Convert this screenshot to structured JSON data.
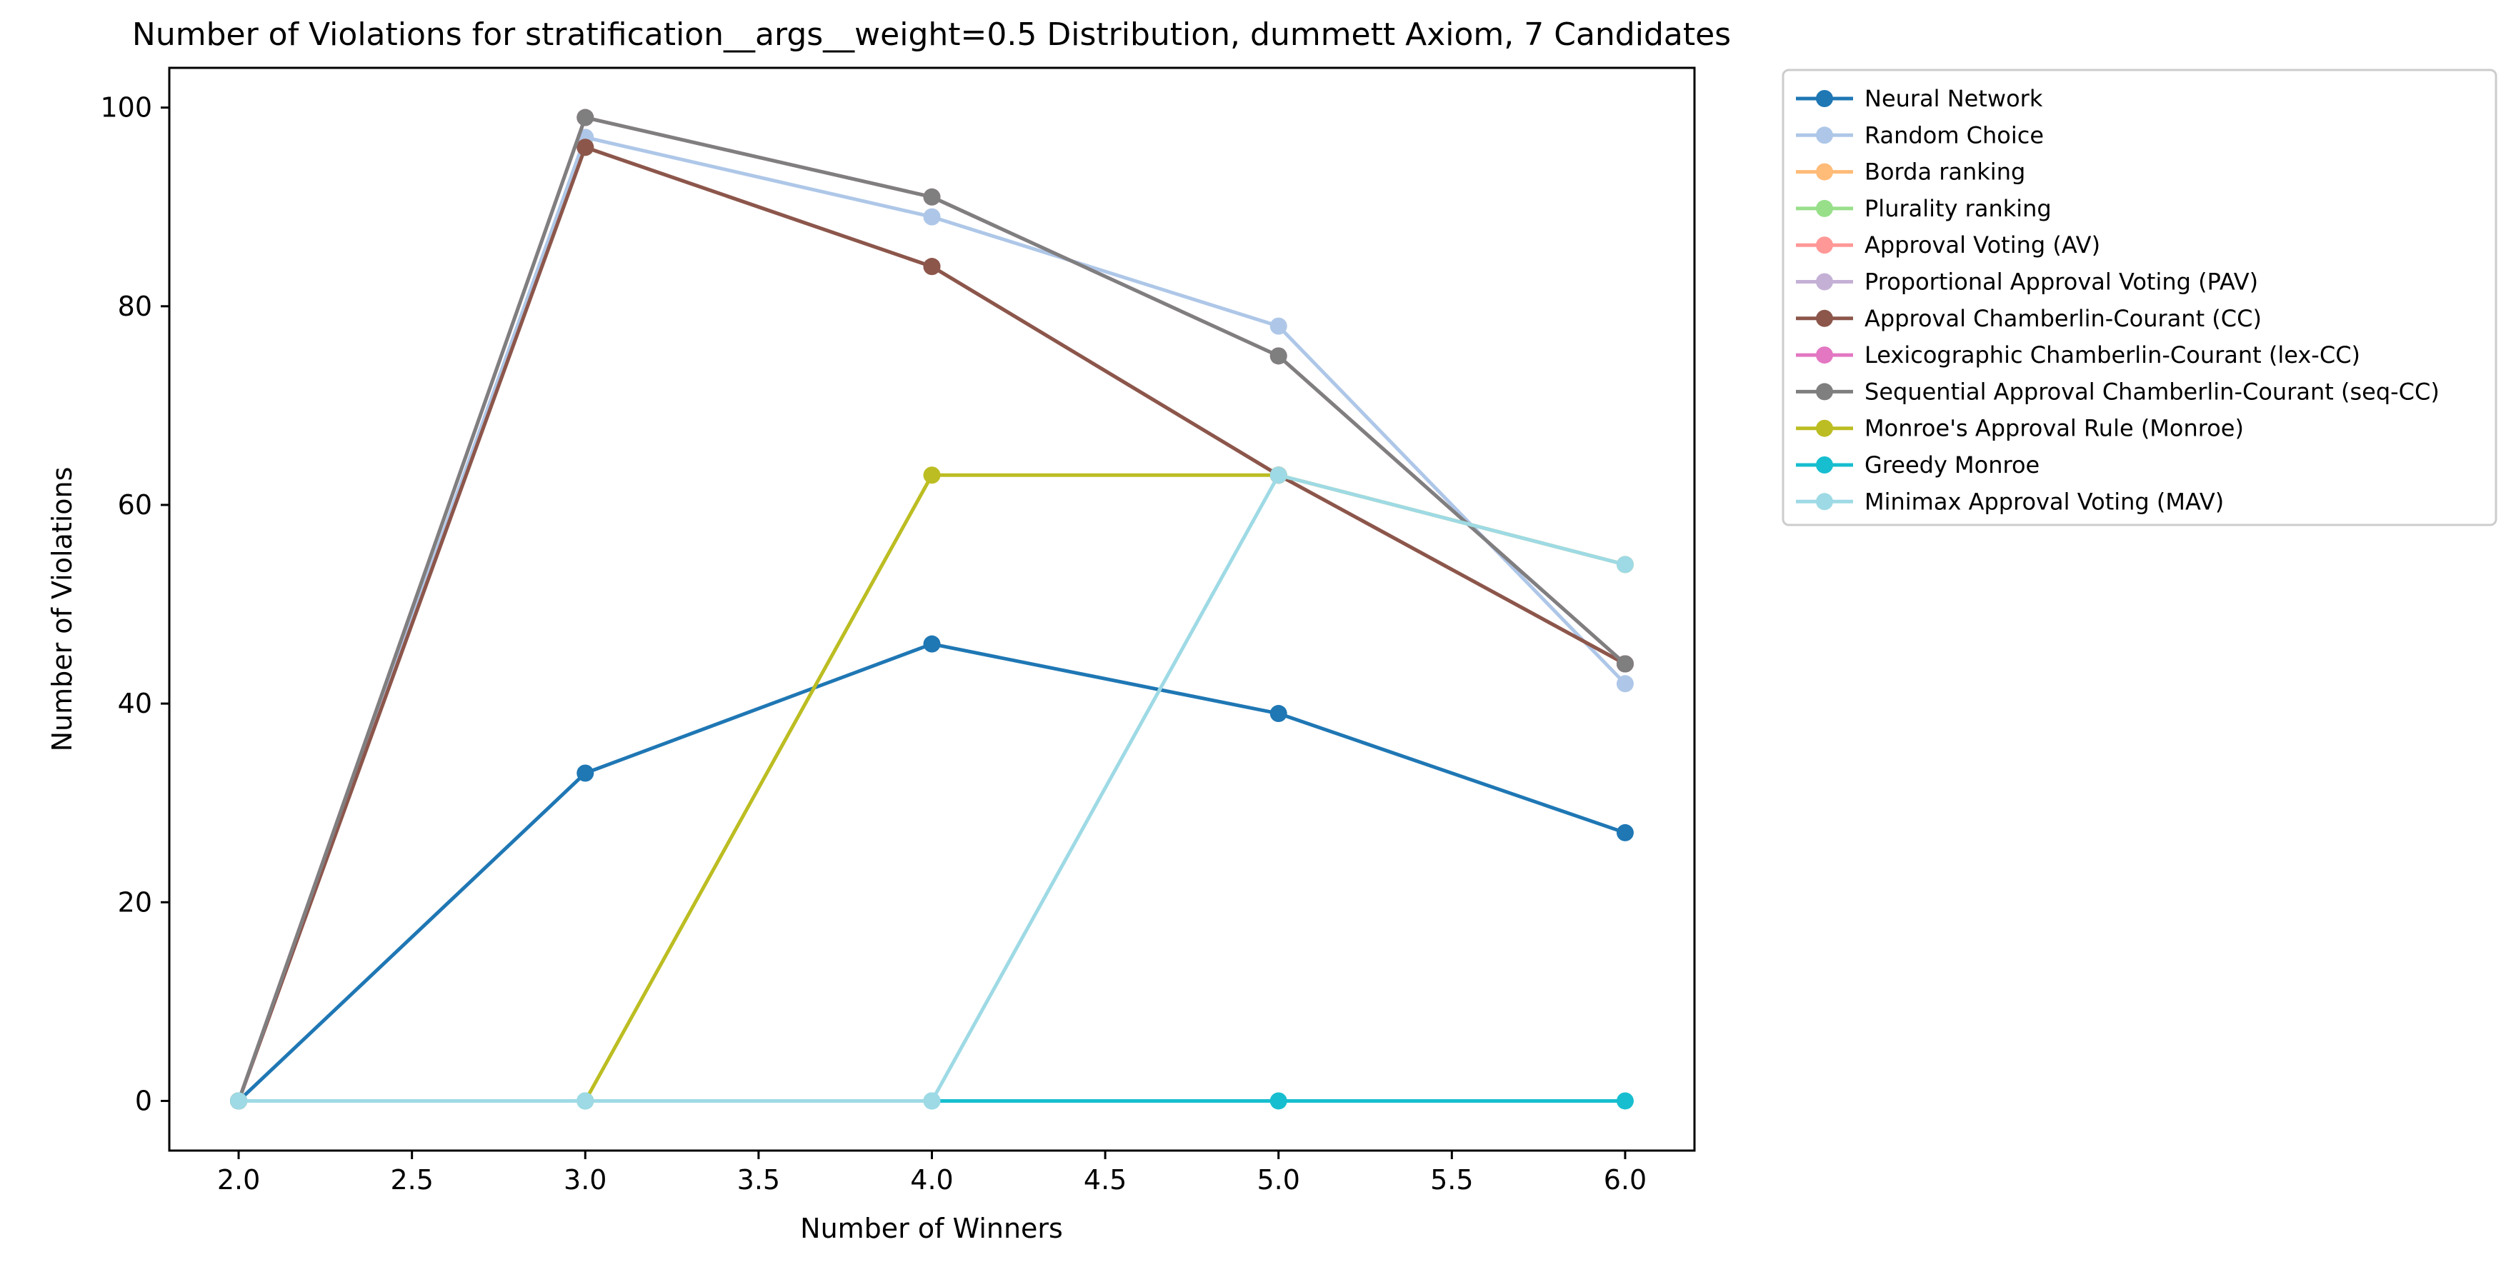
{
  "chart_data": {
    "type": "line",
    "title": "Number of Violations for stratification__args__weight=0.5 Distribution, dummett Axiom, 7 Candidates",
    "xlabel": "Number of Winners",
    "ylabel": "Number of Violations",
    "x": [
      2.0,
      3.0,
      4.0,
      5.0,
      6.0
    ],
    "xlim": [
      1.8,
      6.2
    ],
    "ylim": [
      -5,
      104
    ],
    "x_ticks": [
      2.0,
      2.5,
      3.0,
      3.5,
      4.0,
      4.5,
      5.0,
      5.5,
      6.0
    ],
    "x_tick_labels": [
      "2.0",
      "2.5",
      "3.0",
      "3.5",
      "4.0",
      "4.5",
      "5.0",
      "5.5",
      "6.0"
    ],
    "y_ticks": [
      0,
      20,
      40,
      60,
      80,
      100
    ],
    "y_tick_labels": [
      "0",
      "20",
      "40",
      "60",
      "80",
      "100"
    ],
    "grid": false,
    "legend_position": "outside-right-top",
    "series": [
      {
        "name": "Neural Network",
        "color": "#1f77b4",
        "values": [
          0,
          33,
          46,
          39,
          27
        ]
      },
      {
        "name": "Random Choice",
        "color": "#aec7e8",
        "values": [
          0,
          97,
          89,
          78,
          42
        ]
      },
      {
        "name": "Borda ranking",
        "color": "#ffbb78",
        "values": [
          0,
          96,
          84,
          63,
          44
        ]
      },
      {
        "name": "Plurality ranking",
        "color": "#98df8a",
        "values": [
          0,
          96,
          84,
          63,
          44
        ]
      },
      {
        "name": "Approval Voting (AV)",
        "color": "#ff9896",
        "values": [
          0,
          96,
          84,
          63,
          44
        ]
      },
      {
        "name": "Proportional Approval Voting (PAV)",
        "color": "#c5b0d5",
        "values": [
          0,
          96,
          84,
          63,
          44
        ]
      },
      {
        "name": "Approval Chamberlin-Courant (CC)",
        "color": "#8c564b",
        "values": [
          0,
          96,
          84,
          63,
          44
        ]
      },
      {
        "name": "Lexicographic Chamberlin-Courant (lex-CC)",
        "color": "#e377c2",
        "values": [
          0,
          99,
          91,
          75,
          44
        ]
      },
      {
        "name": "Sequential Approval Chamberlin-Courant (seq-CC)",
        "color": "#7f7f7f",
        "values": [
          0,
          99,
          91,
          75,
          44
        ]
      },
      {
        "name": "Monroe's Approval Rule (Monroe)",
        "color": "#bcbd22",
        "values": [
          0,
          0,
          63,
          63,
          54
        ]
      },
      {
        "name": "Greedy Monroe",
        "color": "#17becf",
        "values": [
          0,
          0,
          0,
          0,
          0
        ]
      },
      {
        "name": "Minimax Approval Voting (MAV)",
        "color": "#9edae5",
        "values": [
          0,
          0,
          0,
          63,
          54
        ]
      }
    ]
  }
}
